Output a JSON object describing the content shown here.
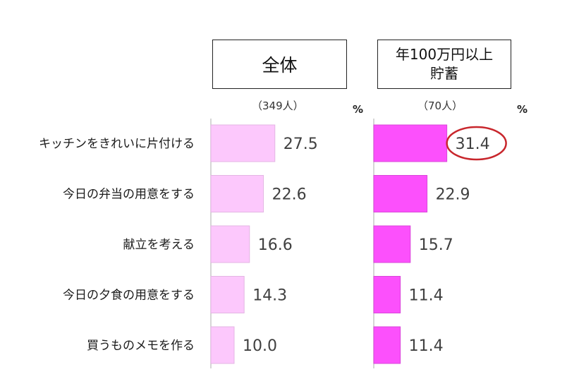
{
  "chart_data": {
    "type": "bar",
    "orientation": "horizontal",
    "unit": "%",
    "categories": [
      "キッチンをきれいに片付ける",
      "今日の弁当の用意をする",
      "献立を考える",
      "今日の夕食の用意をする",
      "買うものメモを作る"
    ],
    "series": [
      {
        "name": "全体",
        "sample": "（349人）",
        "color": "#fcc8fc",
        "border": "#e3b6e3",
        "values": [
          27.5,
          22.6,
          16.6,
          14.3,
          10.0
        ],
        "labels": [
          "27.5",
          "22.6",
          "16.6",
          "14.3",
          "10.0"
        ]
      },
      {
        "name_lines": [
          "年100万円以上",
          "貯蓄"
        ],
        "sample": "（70人）",
        "color": "#fc50fc",
        "border": "#d948d9",
        "values": [
          31.4,
          22.9,
          15.7,
          11.4,
          11.4
        ],
        "labels": [
          "31.4",
          "22.9",
          "15.7",
          "11.4",
          "11.4"
        ]
      }
    ],
    "highlight": {
      "series": 1,
      "index": 0,
      "color": "#c8262c"
    },
    "grid": false,
    "legend": "none"
  }
}
